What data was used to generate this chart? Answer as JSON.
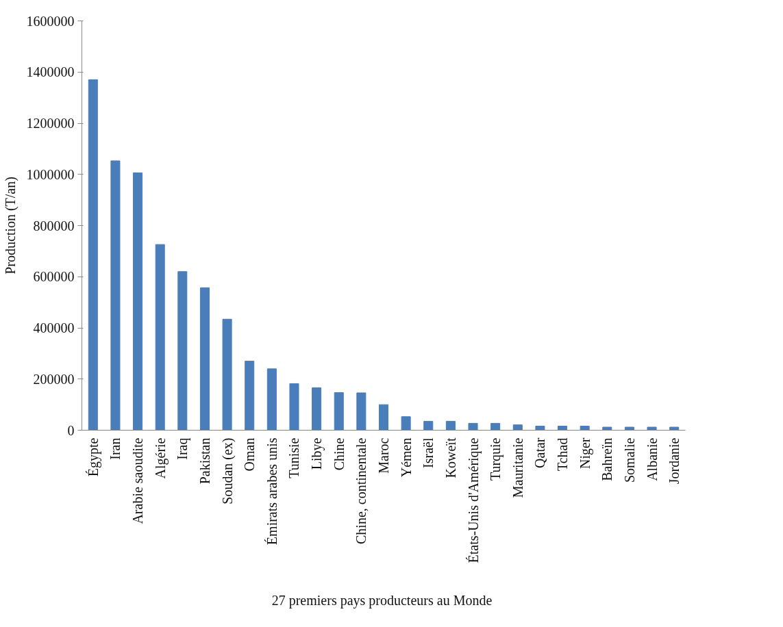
{
  "chart_data": {
    "type": "bar",
    "xlabel": "27 premiers pays  producteurs au Monde",
    "ylabel": "Production (T/an)",
    "categories": [
      "Égypte",
      "Iran",
      "Arabie saoudite",
      "Algérie",
      "Iraq",
      "Pakistan",
      "Soudan (ex)",
      "Oman",
      "Émirats arabes unis",
      "Tunisie",
      "Libye",
      "Chine",
      "Chine, continentale",
      "Maroc",
      "Yémen",
      "Israël",
      "Koweït",
      "États-Unis d'Amérique",
      "Turquie",
      "Mauritanie",
      "Qatar",
      "Tchad",
      "Niger",
      "Bahreïn",
      "Somalie",
      "Albanie",
      "Jordanie"
    ],
    "values": [
      1370000,
      1053000,
      1006000,
      726000,
      620000,
      557000,
      434000,
      270000,
      240000,
      182000,
      166000,
      147000,
      146000,
      100000,
      53000,
      35000,
      35000,
      27000,
      27000,
      21000,
      16000,
      16000,
      16000,
      12000,
      12000,
      12000,
      12000
    ],
    "color": "#4a7ebb",
    "ylim": [
      0,
      1600000
    ],
    "yticks": [
      0,
      200000,
      400000,
      600000,
      800000,
      1000000,
      1200000,
      1400000,
      1600000
    ],
    "grid": false
  }
}
